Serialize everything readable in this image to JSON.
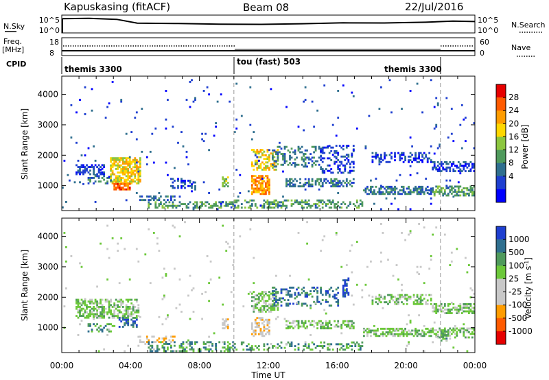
{
  "header": {
    "radar": "Kapuskasing (fitACF)",
    "beam": "Beam 08",
    "date": "22/Jul/2016"
  },
  "top_panels": {
    "nsky_label": "N.Sky",
    "nsky_ticks": [
      "10^5",
      "10^0"
    ],
    "nsearch_label": "N.Search",
    "nsearch_ticks": [
      "10^5",
      "10^0"
    ],
    "freq_label_1": "Freq.",
    "freq_label_2": "[MHz]",
    "freq_ticks": [
      "18",
      "8"
    ],
    "nave_label": "Nave",
    "nave_ticks": [
      "60",
      "0"
    ],
    "cpid_label": "CPID",
    "cpid_segments": [
      {
        "label": "themis 3300",
        "start_hr": 0,
        "end_hr": 10
      },
      {
        "label": "tou (fast) 503",
        "start_hr": 10,
        "end_hr": 22
      },
      {
        "label": "themis 3300",
        "start_hr": 22,
        "end_hr": 24
      }
    ]
  },
  "chart_data": [
    {
      "type": "heatmap",
      "name": "Power",
      "ylabel": "Slant Range [km]",
      "xlabel": "Time UT",
      "xlim": [
        0,
        24
      ],
      "ylim": [
        180,
        4600
      ],
      "x_ticks": [
        "00:00",
        "04:00",
        "08:00",
        "12:00",
        "16:00",
        "20:00",
        "00:00"
      ],
      "y_ticks": [
        1000,
        2000,
        3000,
        4000
      ],
      "colorbar": {
        "label": "Power [dB]",
        "ticks": [
          "28",
          "24",
          "20",
          "16",
          "12",
          "8",
          "4"
        ],
        "colors": [
          "#e60000",
          "#ff5a00",
          "#ff9c00",
          "#ffd700",
          "#8cc63f",
          "#4f9a5c",
          "#2f6f8f",
          "#1e3fd0",
          "#0000ff"
        ]
      },
      "regions": [
        {
          "t0": 0.8,
          "t1": 2.5,
          "r0": 1350,
          "r1": 1700,
          "lvl": 1,
          "d": 0.55
        },
        {
          "t0": 1.5,
          "t1": 2.8,
          "r0": 1050,
          "r1": 1300,
          "lvl": 2,
          "d": 0.4
        },
        {
          "t0": 2.8,
          "t1": 4.5,
          "r0": 1050,
          "r1": 1900,
          "lvl": 5,
          "d": 0.7
        },
        {
          "t0": 3.0,
          "t1": 4.0,
          "r0": 850,
          "r1": 1050,
          "lvl": 7,
          "d": 0.75
        },
        {
          "t0": 4.5,
          "t1": 6.5,
          "r0": 500,
          "r1": 650,
          "lvl": 2,
          "d": 0.4
        },
        {
          "t0": 5.0,
          "t1": 10.0,
          "r0": 250,
          "r1": 450,
          "lvl": 3,
          "d": 0.5
        },
        {
          "t0": 6.3,
          "t1": 7.8,
          "r0": 900,
          "r1": 1200,
          "lvl": 1,
          "d": 0.3
        },
        {
          "t0": 9.3,
          "t1": 9.7,
          "r0": 950,
          "r1": 1300,
          "lvl": 4,
          "d": 0.6
        },
        {
          "t0": 10.0,
          "t1": 17.5,
          "r0": 250,
          "r1": 500,
          "lvl": 3,
          "d": 0.4
        },
        {
          "t0": 11.0,
          "t1": 12.0,
          "r0": 700,
          "r1": 1300,
          "lvl": 6,
          "d": 0.65
        },
        {
          "t0": 11.0,
          "t1": 12.5,
          "r0": 1500,
          "r1": 2200,
          "lvl": 5,
          "d": 0.5
        },
        {
          "t0": 12.2,
          "t1": 15.0,
          "r0": 1600,
          "r1": 2300,
          "lvl": 2,
          "d": 0.35
        },
        {
          "t0": 13.0,
          "t1": 17.0,
          "r0": 950,
          "r1": 1200,
          "lvl": 2,
          "d": 0.5
        },
        {
          "t0": 15.0,
          "t1": 17.0,
          "r0": 1400,
          "r1": 2300,
          "lvl": 1,
          "d": 0.3
        },
        {
          "t0": 17.5,
          "t1": 21.5,
          "r0": 700,
          "r1": 950,
          "lvl": 2,
          "d": 0.55
        },
        {
          "t0": 18.0,
          "t1": 21.5,
          "r0": 1750,
          "r1": 2050,
          "lvl": 1,
          "d": 0.4
        },
        {
          "t0": 21.5,
          "t1": 24.0,
          "r0": 650,
          "r1": 950,
          "lvl": 3,
          "d": 0.5
        },
        {
          "t0": 21.5,
          "t1": 24.0,
          "r0": 1450,
          "r1": 1800,
          "lvl": 1,
          "d": 0.55
        },
        {
          "t0": 0.0,
          "t1": 24.0,
          "r0": 200,
          "r1": 4500,
          "lvl": 1,
          "d": 0.012
        }
      ]
    },
    {
      "type": "heatmap",
      "name": "Velocity",
      "ylabel": "Slant Range [km]",
      "xlabel": "Time UT",
      "xlim": [
        0,
        24
      ],
      "ylim": [
        180,
        4600
      ],
      "x_ticks": [
        "00:00",
        "04:00",
        "08:00",
        "12:00",
        "16:00",
        "20:00",
        "00:00"
      ],
      "y_ticks": [
        1000,
        2000,
        3000,
        4000
      ],
      "colorbar": {
        "label": "Velocity [m s^-1]",
        "ticks": [
          "1000",
          "500",
          "100",
          "25",
          "-25",
          "-100",
          "-500",
          "-1000"
        ],
        "colors": [
          "#1e3fd0",
          "#2f6f8f",
          "#4f9a5c",
          "#6cc83a",
          "#c8c8c8",
          "#c8c8c8",
          "#ff9c00",
          "#ff5a00",
          "#e60000"
        ]
      },
      "regions": [
        {
          "t0": 0.8,
          "t1": 4.5,
          "r0": 1300,
          "r1": 1900,
          "lvl": 5,
          "d": 0.55
        },
        {
          "t0": 1.5,
          "t1": 3.0,
          "r0": 850,
          "r1": 1100,
          "lvl": 6,
          "d": 0.35
        },
        {
          "t0": 3.3,
          "t1": 4.3,
          "r0": 1000,
          "r1": 1300,
          "lvl": 7,
          "d": 0.5
        },
        {
          "t0": 4.5,
          "t1": 6.5,
          "r0": 500,
          "r1": 700,
          "lvl": 3,
          "d": 0.4
        },
        {
          "t0": 5.0,
          "t1": 10.0,
          "r0": 200,
          "r1": 500,
          "lvl": 6,
          "d": 0.35
        },
        {
          "t0": 9.3,
          "t1": 9.7,
          "r0": 950,
          "r1": 1300,
          "lvl": 3,
          "d": 0.6
        },
        {
          "t0": 10.0,
          "t1": 17.5,
          "r0": 250,
          "r1": 500,
          "lvl": 6,
          "d": 0.25
        },
        {
          "t0": 11.0,
          "t1": 12.0,
          "r0": 700,
          "r1": 1300,
          "lvl": 3,
          "d": 0.5
        },
        {
          "t0": 11.0,
          "t1": 12.5,
          "r0": 1500,
          "r1": 2200,
          "lvl": 5,
          "d": 0.5
        },
        {
          "t0": 12.2,
          "t1": 16.0,
          "r0": 1700,
          "r1": 2300,
          "lvl": 7,
          "d": 0.3
        },
        {
          "t0": 13.0,
          "t1": 17.0,
          "r0": 950,
          "r1": 1200,
          "lvl": 5,
          "d": 0.5
        },
        {
          "t0": 16.3,
          "t1": 16.7,
          "r0": 2000,
          "r1": 2600,
          "lvl": 8,
          "d": 0.5
        },
        {
          "t0": 17.5,
          "t1": 21.5,
          "r0": 700,
          "r1": 950,
          "lvl": 5,
          "d": 0.55
        },
        {
          "t0": 18.0,
          "t1": 21.5,
          "r0": 1750,
          "r1": 2050,
          "lvl": 5,
          "d": 0.4
        },
        {
          "t0": 21.5,
          "t1": 24.0,
          "r0": 650,
          "r1": 950,
          "lvl": 5,
          "d": 0.5
        },
        {
          "t0": 22.0,
          "t1": 22.4,
          "r0": 550,
          "r1": 850,
          "lvl": 6,
          "d": 0.6
        },
        {
          "t0": 21.5,
          "t1": 24.0,
          "r0": 1450,
          "r1": 1800,
          "lvl": 5,
          "d": 0.55
        },
        {
          "t0": 0.0,
          "t1": 24.0,
          "r0": 200,
          "r1": 4500,
          "lvl": 4,
          "d": 0.012
        }
      ]
    }
  ]
}
